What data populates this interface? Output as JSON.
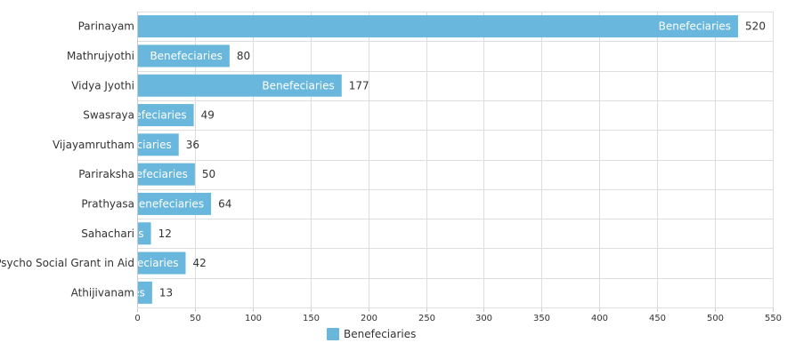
{
  "chart_data": {
    "type": "bar",
    "orientation": "horizontal",
    "categories": [
      "Parinayam",
      "Mathrujyothi",
      "Vidya Jyothi",
      "Swasraya",
      "Vijayamrutham",
      "Pariraksha",
      "Prathyasa",
      "Sahachari",
      "Psycho Social Grant in Aid",
      "Athijivanam"
    ],
    "series": [
      {
        "name": "Benefeciaries",
        "values": [
          520,
          80,
          177,
          49,
          36,
          50,
          64,
          12,
          42,
          13
        ]
      }
    ],
    "xlim": [
      0,
      550
    ],
    "xticks": [
      0,
      50,
      100,
      150,
      200,
      250,
      300,
      350,
      400,
      450,
      500,
      550
    ],
    "grid": true,
    "legend": "bottom-center",
    "bar_color": "#69b7dc"
  }
}
